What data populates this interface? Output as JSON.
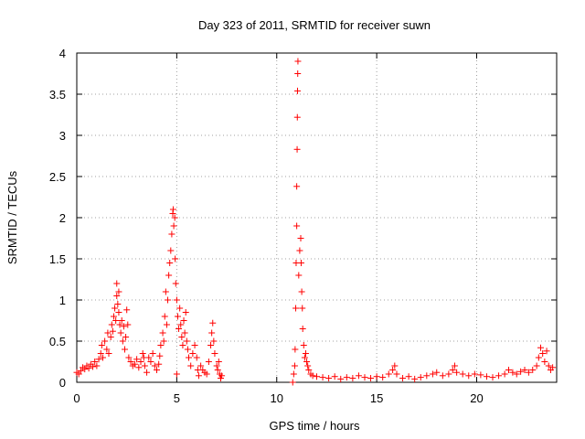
{
  "chart_data": {
    "type": "scatter",
    "title": "Day 323 of 2011, SRMTID for receiver suwn",
    "xlabel": "GPS time / hours",
    "ylabel": "SRMTID / TECUs",
    "xlim": [
      0,
      24
    ],
    "ylim": [
      0,
      4
    ],
    "xticks": [
      0,
      5,
      10,
      15,
      20
    ],
    "xtick_labels": [
      "0",
      "5",
      "10",
      "15",
      "20"
    ],
    "yticks": [
      0,
      0.5,
      1,
      1.5,
      2,
      2.5,
      3,
      3.5,
      4
    ],
    "ytick_labels": [
      "0",
      "0.5",
      "1",
      "1.5",
      "2",
      "2.5",
      "3",
      "3.5",
      "4"
    ],
    "grid": true,
    "marker": "+",
    "color": "#ff0000",
    "series": [
      {
        "name": "SRMTID",
        "points": [
          [
            0.0,
            0.12
          ],
          [
            0.1,
            0.1
          ],
          [
            0.2,
            0.14
          ],
          [
            0.3,
            0.18
          ],
          [
            0.4,
            0.16
          ],
          [
            0.5,
            0.2
          ],
          [
            0.6,
            0.17
          ],
          [
            0.7,
            0.22
          ],
          [
            0.8,
            0.19
          ],
          [
            0.9,
            0.25
          ],
          [
            1.0,
            0.2
          ],
          [
            1.1,
            0.28
          ],
          [
            1.2,
            0.35
          ],
          [
            1.25,
            0.45
          ],
          [
            1.3,
            0.3
          ],
          [
            1.4,
            0.5
          ],
          [
            1.5,
            0.4
          ],
          [
            1.55,
            0.6
          ],
          [
            1.6,
            0.35
          ],
          [
            1.7,
            0.55
          ],
          [
            1.75,
            0.7
          ],
          [
            1.8,
            0.62
          ],
          [
            1.85,
            0.8
          ],
          [
            1.9,
            0.9
          ],
          [
            1.95,
            0.75
          ],
          [
            2.0,
            1.2
          ],
          [
            2.0,
            1.05
          ],
          [
            2.05,
            0.95
          ],
          [
            2.1,
            0.85
          ],
          [
            2.1,
            1.1
          ],
          [
            2.15,
            0.7
          ],
          [
            2.2,
            0.6
          ],
          [
            2.25,
            0.75
          ],
          [
            2.3,
            0.5
          ],
          [
            2.35,
            0.68
          ],
          [
            2.4,
            0.4
          ],
          [
            2.45,
            0.55
          ],
          [
            2.5,
            0.88
          ],
          [
            2.55,
            0.7
          ],
          [
            2.6,
            0.3
          ],
          [
            2.7,
            0.25
          ],
          [
            2.8,
            0.2
          ],
          [
            2.9,
            0.22
          ],
          [
            3.0,
            0.28
          ],
          [
            3.1,
            0.18
          ],
          [
            3.2,
            0.25
          ],
          [
            3.3,
            0.35
          ],
          [
            3.35,
            0.3
          ],
          [
            3.4,
            0.2
          ],
          [
            3.5,
            0.12
          ],
          [
            3.6,
            0.3
          ],
          [
            3.7,
            0.25
          ],
          [
            3.8,
            0.35
          ],
          [
            3.9,
            0.2
          ],
          [
            4.0,
            0.15
          ],
          [
            4.1,
            0.22
          ],
          [
            4.15,
            0.32
          ],
          [
            4.2,
            0.45
          ],
          [
            4.3,
            0.6
          ],
          [
            4.35,
            0.5
          ],
          [
            4.4,
            0.8
          ],
          [
            4.45,
            1.1
          ],
          [
            4.5,
            0.7
          ],
          [
            4.55,
            1.0
          ],
          [
            4.6,
            1.3
          ],
          [
            4.65,
            1.45
          ],
          [
            4.7,
            1.6
          ],
          [
            4.75,
            1.8
          ],
          [
            4.8,
            2.05
          ],
          [
            4.82,
            2.1
          ],
          [
            4.85,
            1.9
          ],
          [
            4.9,
            2.0
          ],
          [
            4.92,
            1.5
          ],
          [
            4.95,
            1.2
          ],
          [
            5.0,
            1.0
          ],
          [
            5.0,
            0.1
          ],
          [
            5.05,
            0.8
          ],
          [
            5.1,
            0.65
          ],
          [
            5.15,
            0.9
          ],
          [
            5.2,
            0.7
          ],
          [
            5.25,
            0.55
          ],
          [
            5.3,
            0.45
          ],
          [
            5.35,
            0.75
          ],
          [
            5.4,
            0.6
          ],
          [
            5.45,
            0.85
          ],
          [
            5.5,
            0.5
          ],
          [
            5.55,
            0.4
          ],
          [
            5.6,
            0.3
          ],
          [
            5.7,
            0.2
          ],
          [
            5.8,
            0.35
          ],
          [
            5.9,
            0.45
          ],
          [
            6.0,
            0.3
          ],
          [
            6.05,
            0.15
          ],
          [
            6.1,
            0.08
          ],
          [
            6.2,
            0.2
          ],
          [
            6.3,
            0.15
          ],
          [
            6.4,
            0.12
          ],
          [
            6.5,
            0.1
          ],
          [
            6.6,
            0.25
          ],
          [
            6.7,
            0.45
          ],
          [
            6.75,
            0.6
          ],
          [
            6.8,
            0.72
          ],
          [
            6.85,
            0.5
          ],
          [
            6.9,
            0.35
          ],
          [
            7.0,
            0.2
          ],
          [
            7.05,
            0.15
          ],
          [
            7.1,
            0.25
          ],
          [
            7.15,
            0.1
          ],
          [
            7.2,
            0.05
          ],
          [
            7.25,
            0.08
          ],
          [
            10.8,
            0.0
          ],
          [
            10.85,
            0.1
          ],
          [
            10.9,
            0.2
          ],
          [
            10.92,
            0.4
          ],
          [
            10.95,
            0.9
          ],
          [
            10.97,
            1.45
          ],
          [
            11.0,
            1.9
          ],
          [
            11.0,
            2.38
          ],
          [
            11.02,
            2.83
          ],
          [
            11.03,
            3.22
          ],
          [
            11.04,
            3.54
          ],
          [
            11.05,
            3.75
          ],
          [
            11.06,
            3.9
          ],
          [
            11.1,
            1.3
          ],
          [
            11.15,
            1.6
          ],
          [
            11.2,
            1.75
          ],
          [
            11.22,
            1.45
          ],
          [
            11.25,
            1.1
          ],
          [
            11.28,
            0.9
          ],
          [
            11.3,
            0.65
          ],
          [
            11.35,
            0.45
          ],
          [
            11.4,
            0.3
          ],
          [
            11.45,
            0.35
          ],
          [
            11.5,
            0.25
          ],
          [
            11.55,
            0.2
          ],
          [
            11.6,
            0.15
          ],
          [
            11.7,
            0.1
          ],
          [
            11.8,
            0.08
          ],
          [
            12.0,
            0.07
          ],
          [
            12.3,
            0.06
          ],
          [
            12.6,
            0.05
          ],
          [
            12.9,
            0.07
          ],
          [
            13.2,
            0.04
          ],
          [
            13.5,
            0.06
          ],
          [
            13.8,
            0.05
          ],
          [
            14.1,
            0.08
          ],
          [
            14.4,
            0.06
          ],
          [
            14.7,
            0.05
          ],
          [
            15.0,
            0.07
          ],
          [
            15.3,
            0.06
          ],
          [
            15.6,
            0.1
          ],
          [
            15.8,
            0.15
          ],
          [
            15.9,
            0.2
          ],
          [
            16.0,
            0.1
          ],
          [
            16.3,
            0.05
          ],
          [
            16.6,
            0.07
          ],
          [
            16.9,
            0.04
          ],
          [
            17.2,
            0.06
          ],
          [
            17.5,
            0.08
          ],
          [
            17.8,
            0.1
          ],
          [
            18.0,
            0.12
          ],
          [
            18.3,
            0.08
          ],
          [
            18.6,
            0.1
          ],
          [
            18.8,
            0.15
          ],
          [
            18.9,
            0.2
          ],
          [
            19.0,
            0.12
          ],
          [
            19.3,
            0.1
          ],
          [
            19.6,
            0.08
          ],
          [
            19.9,
            0.1
          ],
          [
            20.2,
            0.09
          ],
          [
            20.5,
            0.07
          ],
          [
            20.8,
            0.06
          ],
          [
            21.1,
            0.08
          ],
          [
            21.4,
            0.1
          ],
          [
            21.6,
            0.15
          ],
          [
            21.8,
            0.12
          ],
          [
            22.0,
            0.1
          ],
          [
            22.2,
            0.13
          ],
          [
            22.4,
            0.15
          ],
          [
            22.6,
            0.12
          ],
          [
            22.8,
            0.15
          ],
          [
            23.0,
            0.2
          ],
          [
            23.1,
            0.3
          ],
          [
            23.2,
            0.42
          ],
          [
            23.3,
            0.35
          ],
          [
            23.4,
            0.25
          ],
          [
            23.5,
            0.38
          ],
          [
            23.6,
            0.2
          ],
          [
            23.7,
            0.15
          ],
          [
            23.8,
            0.18
          ]
        ]
      }
    ]
  }
}
